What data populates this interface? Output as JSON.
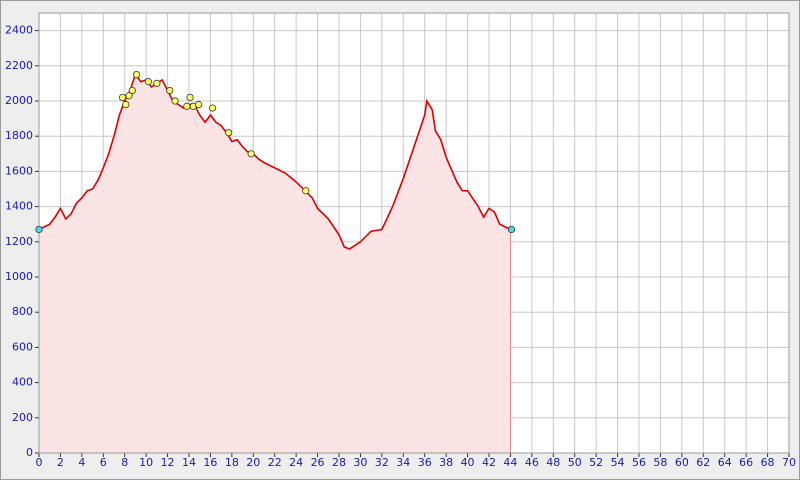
{
  "chart_data": {
    "type": "area",
    "x": [
      0,
      1,
      1.5,
      2,
      2.5,
      3,
      3.5,
      4,
      4.5,
      5,
      5.5,
      6,
      6.5,
      7,
      7.5,
      8,
      8.5,
      9,
      9.5,
      10,
      10.5,
      11,
      11.5,
      12,
      12.5,
      13,
      13.5,
      14,
      14.5,
      15,
      15.5,
      16,
      16.5,
      17,
      17.5,
      18,
      18.5,
      19,
      19.5,
      20,
      20.5,
      21,
      22,
      23,
      24,
      25,
      25.5,
      26,
      27,
      28,
      28.5,
      29,
      30,
      31,
      32,
      33,
      34,
      35,
      36,
      36.2,
      36.7,
      37,
      37.5,
      38,
      39,
      39.5,
      40,
      41,
      41.5,
      42,
      42.5,
      43,
      44
    ],
    "values": [
      1270,
      1300,
      1340,
      1390,
      1330,
      1360,
      1420,
      1450,
      1490,
      1500,
      1550,
      1620,
      1700,
      1800,
      1920,
      2000,
      2060,
      2150,
      2110,
      2120,
      2080,
      2100,
      2120,
      2060,
      2000,
      1980,
      1960,
      1980,
      1980,
      1920,
      1880,
      1920,
      1880,
      1860,
      1820,
      1770,
      1780,
      1740,
      1710,
      1700,
      1670,
      1650,
      1620,
      1590,
      1540,
      1480,
      1450,
      1390,
      1330,
      1240,
      1170,
      1160,
      1200,
      1260,
      1270,
      1400,
      1560,
      1740,
      1920,
      2000,
      1950,
      1830,
      1780,
      1680,
      1540,
      1490,
      1490,
      1400,
      1340,
      1390,
      1370,
      1300,
      1270
    ],
    "color": "#dd0000",
    "fill_color": "#fde4e4",
    "markers": [
      {
        "color": "#ffff66",
        "x": [
          7.8,
          8.1,
          8.4,
          8.7,
          9.1,
          10.2,
          11,
          12.2,
          12.7,
          13.8,
          14.1,
          14.4,
          14.9,
          16.2,
          17.7,
          19.8,
          24.9
        ],
        "values": [
          2020,
          1980,
          2030,
          2060,
          2150,
          2110,
          2100,
          2060,
          2000,
          1970,
          2020,
          1970,
          1980,
          1960,
          1820,
          1700,
          1490
        ]
      },
      {
        "color": "#44ddee",
        "x": [
          0,
          44.1
        ],
        "values": [
          1270,
          1270
        ]
      }
    ],
    "xlim": [
      0,
      70
    ],
    "xticks": [
      0,
      2,
      4,
      6,
      8,
      10,
      12,
      14,
      16,
      18,
      20,
      22,
      24,
      26,
      28,
      30,
      32,
      34,
      36,
      38,
      40,
      42,
      44,
      46,
      48,
      50,
      52,
      54,
      56,
      58,
      60,
      62,
      64,
      66,
      68,
      70
    ],
    "ylim": [
      0,
      2500
    ],
    "yticks": [
      0,
      200,
      400,
      600,
      800,
      1000,
      1200,
      1400,
      1600,
      1800,
      2000,
      2200,
      2400
    ],
    "grid": true
  }
}
